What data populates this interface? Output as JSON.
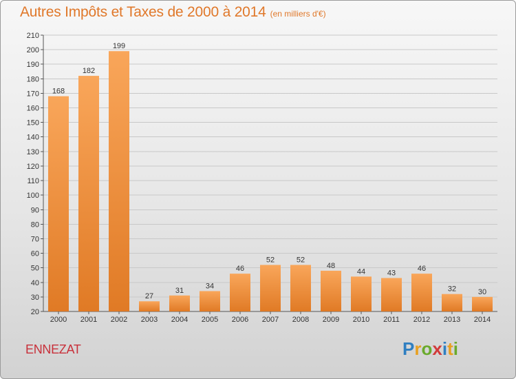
{
  "header": {
    "title": "Autres Impôts et Taxes de 2000 à 2014",
    "unit": "(en milliers d'€)"
  },
  "commune": "ENNEZAT",
  "logo": {
    "text": "Proxiti",
    "letters": [
      {
        "ch": "P",
        "color": "#2f7fc1"
      },
      {
        "ch": "r",
        "color": "#e8a020"
      },
      {
        "ch": "o",
        "color": "#6aaa2c"
      },
      {
        "ch": "x",
        "color": "#d23a3a"
      },
      {
        "ch": "i",
        "color": "#2f7fc1"
      },
      {
        "ch": "t",
        "color": "#e8a020"
      },
      {
        "ch": "i",
        "color": "#6aaa2c"
      }
    ]
  },
  "colors": {
    "bar_top": "#f9a65a",
    "bar_bottom": "#e07a25",
    "title": "#e0782a",
    "commune": "#c8303a",
    "grid": "#c8c8c8"
  },
  "chart_data": {
    "type": "bar",
    "title": "Autres Impôts et Taxes de 2000 à 2014",
    "subtitle": "(en milliers d'€)",
    "categories": [
      "2000",
      "2001",
      "2002",
      "2003",
      "2004",
      "2005",
      "2006",
      "2007",
      "2008",
      "2009",
      "2010",
      "2011",
      "2012",
      "2013",
      "2014"
    ],
    "values": [
      168,
      182,
      199,
      27,
      31,
      34,
      46,
      52,
      52,
      48,
      44,
      43,
      46,
      32,
      30
    ],
    "ylim": [
      20,
      210
    ],
    "yticks": [
      20,
      30,
      40,
      50,
      60,
      70,
      80,
      90,
      100,
      110,
      120,
      130,
      140,
      150,
      160,
      170,
      180,
      190,
      200,
      210
    ],
    "grid": true,
    "xlabel": "",
    "ylabel": ""
  }
}
